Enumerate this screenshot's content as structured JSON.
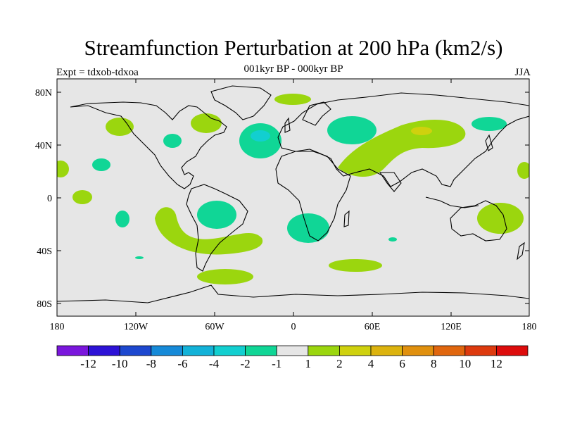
{
  "title": "Streamfunction Perturbation at 200 hPa (km2/s)",
  "subtitle": "001kyr BP - 000kyr BP",
  "experiment": "Expt = tdxob-tdxoa",
  "season": "JJA",
  "lat_ticks": [
    "80N",
    "40N",
    "0",
    "40S",
    "80S"
  ],
  "lon_ticks": [
    "180",
    "120W",
    "60W",
    "0",
    "60E",
    "120E",
    "180"
  ],
  "colorbar": {
    "labels": [
      "-12",
      "-10",
      "-8",
      "-6",
      "-4",
      "-2",
      "-1",
      "1",
      "2",
      "4",
      "6",
      "8",
      "10",
      "12"
    ],
    "colors": [
      "#7a16dc",
      "#2d12d6",
      "#1d48cf",
      "#168ad8",
      "#13b2d8",
      "#12cfd0",
      "#10d696",
      "#e6e6e6",
      "#9bd60e",
      "#cfd10e",
      "#dcb30e",
      "#e0900e",
      "#e0660e",
      "#dd3a0e",
      "#dd0c0c"
    ]
  },
  "colors": {
    "background": "#e6e6e6",
    "neg_1_2": "#10d696",
    "neg_2_4": "#12cfd0",
    "pos_1_2": "#9bd60e",
    "pos_2_4": "#cfd10e"
  }
}
